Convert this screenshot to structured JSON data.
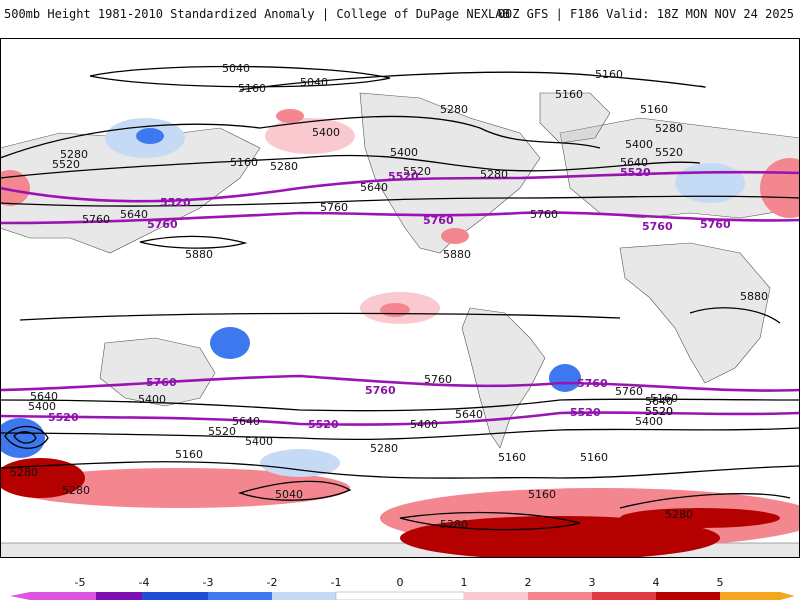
{
  "header": {
    "left": "500mb Height 1981-2010 Standardized Anomaly | College of DuPage NEXLAB",
    "right": "00Z GFS | F186 Valid: 18Z MON NOV 24 2025"
  },
  "colors": {
    "land": "#bdbdbd",
    "purple": "#9b14b3",
    "black": "#000000",
    "neg5": "#dc55e3",
    "neg4": "#7d0fb2",
    "neg3": "#1f4fd9",
    "neg2": "#3d78ee",
    "neg1": "#c5dbf5",
    "pos1": "#f9c9cf",
    "pos2": "#f4868f",
    "pos3": "#e03a45",
    "pos4": "#b50000",
    "pos5": "#f4a61f"
  },
  "colorbar": {
    "ticks": [
      "-5",
      "-4",
      "-3",
      "-2",
      "-1",
      "0",
      "1",
      "2",
      "3",
      "4",
      "5"
    ]
  },
  "contour_labels": [
    "5040",
    "5040",
    "5160",
    "5160",
    "5160",
    "5160",
    "5160",
    "5160",
    "5280",
    "5280",
    "5280",
    "5280",
    "5280",
    "5400",
    "5400",
    "5400",
    "5520",
    "5520",
    "5520",
    "5640",
    "5640",
    "5640",
    "5760",
    "5760",
    "5760",
    "5880",
    "5880",
    "5880",
    "5760",
    "5640",
    "5640",
    "5520",
    "5520",
    "5400",
    "5400",
    "5400",
    "5280",
    "5280",
    "5280",
    "5160",
    "5160",
    "5160",
    "5040",
    "5280",
    "5280",
    "5160",
    "5400",
    "5520",
    "5640",
    "5760",
    "5640",
    "5400"
  ],
  "purple_labels": [
    "5520",
    "5520",
    "5520",
    "5760",
    "5760",
    "5760",
    "5760",
    "5760",
    "5760",
    "5760",
    "5520",
    "5520",
    "5520"
  ]
}
